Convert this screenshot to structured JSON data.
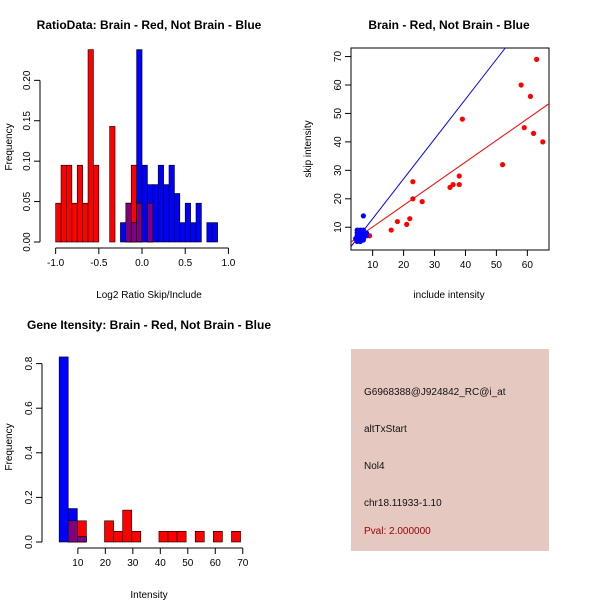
{
  "colors": {
    "red": "#ff0000",
    "blue": "#0000ff",
    "overlap": "#800080",
    "info_bg": "#e5c9c1",
    "pval": "#990000"
  },
  "chart_data": [
    {
      "type": "bar",
      "subtype": "histogram",
      "title": "RatioData: Brain - Red, Not Brain - Blue",
      "xlabel": "Log2 Ratio Skip/Include",
      "ylabel": "Frequency",
      "xlim": [
        -1.1,
        1.25
      ],
      "ylim": [
        0,
        0.24
      ],
      "xticks": [
        -1.0,
        -0.5,
        0.0,
        0.5,
        1.0
      ],
      "xtick_labels": [
        "-1.0",
        "-0.5",
        "0.0",
        "0.5",
        "1.0"
      ],
      "yticks": [
        0.0,
        0.05,
        0.1,
        0.15,
        0.2
      ],
      "ytick_labels": [
        "0.00",
        "0.05",
        "0.10",
        "0.15",
        "0.20"
      ],
      "bin_width": 0.0625,
      "series": [
        {
          "name": "Brain",
          "color": "red",
          "bin_starts": [
            -1.0,
            -0.9375,
            -0.875,
            -0.8125,
            -0.75,
            -0.6875,
            -0.625,
            -0.5625,
            -0.5,
            -0.4375,
            -0.375,
            -0.3125,
            -0.25,
            -0.1875,
            -0.125,
            -0.0625,
            0.0,
            0.0625,
            0.125,
            0.1875,
            0.25,
            0.3125,
            0.375,
            0.4375
          ],
          "values": [
            0.048,
            0.095,
            0.095,
            0.048,
            0.095,
            0.048,
            0.238,
            0.095,
            0.0,
            0.0,
            0.143,
            0.0,
            0.0,
            0.048,
            0.095,
            0.048,
            0.0,
            0.048,
            0.0,
            0.0,
            0.0,
            0.0,
            0.0,
            0.0
          ]
        },
        {
          "name": "Not Brain",
          "color": "blue",
          "bin_starts": [
            -1.0,
            -0.9375,
            -0.875,
            -0.8125,
            -0.75,
            -0.6875,
            -0.625,
            -0.5625,
            -0.5,
            -0.4375,
            -0.375,
            -0.3125,
            -0.25,
            -0.1875,
            -0.125,
            -0.0625,
            0.0,
            0.0625,
            0.125,
            0.1875,
            0.25,
            0.3125,
            0.375,
            0.4375,
            0.5,
            0.5625,
            0.625,
            0.6875,
            0.75,
            0.8125,
            0.875,
            0.9375,
            1.0
          ],
          "values": [
            0,
            0,
            0,
            0,
            0,
            0,
            0,
            0,
            0,
            0,
            0,
            0,
            0.024,
            0.048,
            0.024,
            0.238,
            0.095,
            0.071,
            0.071,
            0.095,
            0.071,
            0.095,
            0.06,
            0.024,
            0.048,
            0.024,
            0.048,
            0.0,
            0.024,
            0.024,
            0.0,
            0.0,
            0.0
          ]
        }
      ]
    },
    {
      "type": "scatter",
      "title": "Brain - Red, Not Brain - Blue",
      "xlabel": "include intensity",
      "ylabel": "skip intensity",
      "xlim": [
        3,
        67
      ],
      "ylim": [
        2,
        73
      ],
      "xticks": [
        10,
        20,
        30,
        40,
        50,
        60
      ],
      "xtick_labels": [
        "10",
        "20",
        "30",
        "40",
        "50",
        "60"
      ],
      "yticks": [
        10,
        20,
        30,
        40,
        50,
        60,
        70
      ],
      "ytick_labels": [
        "10",
        "20",
        "30",
        "40",
        "50",
        "60",
        "70"
      ],
      "series": [
        {
          "name": "Brain",
          "color": "red",
          "x": [
            9,
            16,
            18,
            21,
            22,
            23,
            23,
            26,
            35,
            36,
            38,
            38,
            39,
            52,
            58,
            59,
            61,
            62,
            63,
            65
          ],
          "y": [
            7,
            9,
            12,
            11,
            13,
            20,
            26,
            19,
            24,
            25,
            28,
            25,
            48,
            32,
            60,
            45,
            56,
            43,
            69,
            40
          ]
        },
        {
          "name": "Not Brain",
          "color": "blue",
          "x": [
            4.5,
            5,
            5,
            5,
            5.5,
            5.5,
            6,
            6,
            6,
            6,
            6,
            6.5,
            6.5,
            6.5,
            7,
            7,
            7,
            7,
            7,
            5.5,
            6,
            7,
            8,
            8,
            6,
            5
          ],
          "y": [
            6,
            5,
            7,
            9,
            6,
            8,
            5,
            6,
            7,
            8,
            9,
            6,
            7,
            8,
            6,
            7,
            8,
            9,
            14,
            5.5,
            6.5,
            5.5,
            7,
            8,
            5,
            8
          ]
        }
      ],
      "fit_lines": [
        {
          "color": "blue",
          "slope": 1.4,
          "intercept": -1.0
        },
        {
          "color": "red",
          "slope": 0.76,
          "intercept": 2.5
        }
      ]
    },
    {
      "type": "bar",
      "subtype": "histogram",
      "title": "Gene Itensity: Brain - Red, Not Brain - Blue",
      "xlabel": "Intensity",
      "ylabel": "Frequency",
      "xlim": [
        -0.5,
        73
      ],
      "ylim": [
        0,
        0.87
      ],
      "xticks": [
        10,
        20,
        30,
        40,
        50,
        60,
        70
      ],
      "xtick_labels": [
        "10",
        "20",
        "30",
        "40",
        "50",
        "60",
        "70"
      ],
      "yticks": [
        0.0,
        0.2,
        0.4,
        0.6,
        0.8
      ],
      "ytick_labels": [
        "0.0",
        "0.2",
        "0.4",
        "0.6",
        "0.8"
      ],
      "bin_width": 3.3,
      "series": [
        {
          "name": "Brain",
          "color": "red",
          "bin_starts": [
            6.5,
            9.8,
            19.7,
            23.0,
            26.3,
            29.6,
            39.5,
            42.8,
            46.1,
            52.7,
            59.3,
            65.9
          ],
          "values": [
            0.095,
            0.095,
            0.095,
            0.048,
            0.143,
            0.048,
            0.048,
            0.048,
            0.048,
            0.048,
            0.048,
            0.048
          ]
        },
        {
          "name": "Not Brain",
          "color": "blue",
          "bin_starts": [
            3.2,
            6.5,
            9.8
          ],
          "values": [
            0.83,
            0.15,
            0.024
          ]
        }
      ]
    }
  ],
  "info_panel": {
    "probe_id": "G6968388@J924842_RC@i_at",
    "event_type": "altTxStart",
    "gene": "Nol4",
    "location": "chr18.11933-1.10",
    "pval": "Pval: 2.000000"
  }
}
